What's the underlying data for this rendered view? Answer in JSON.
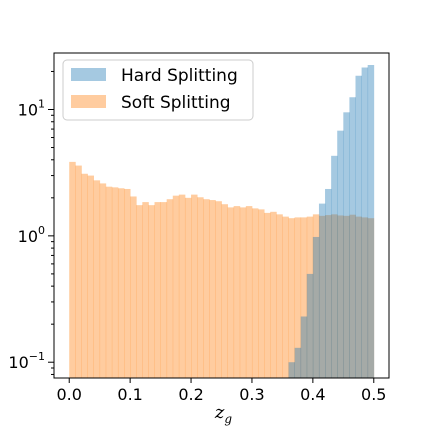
{
  "chart_data": {
    "type": "histogram",
    "title": "",
    "xlabel_main": "z",
    "xlabel_sub": "g",
    "ylabel": "",
    "yscale": "log",
    "xlim": [
      -0.025,
      0.525
    ],
    "ylim": [
      0.075,
      28
    ],
    "x_ticks": [
      0.0,
      0.1,
      0.2,
      0.3,
      0.4,
      0.5
    ],
    "x_tick_labels": [
      "0.0",
      "0.1",
      "0.2",
      "0.3",
      "0.4",
      "0.5"
    ],
    "y_ticks": [
      {
        "value": 0.1,
        "base": "10",
        "exp": "−1"
      },
      {
        "value": 1,
        "base": "10",
        "exp": "0"
      },
      {
        "value": 10,
        "base": "10",
        "exp": "1"
      }
    ],
    "grid": false,
    "legend_position": "upper-left",
    "bin_start": 0.0,
    "bin_width": 0.01,
    "series": [
      {
        "name": "Hard Splitting",
        "color": "#1f77b4",
        "opacity": 0.4,
        "values": [
          0,
          0,
          0,
          0,
          0,
          0,
          0,
          0,
          0,
          0,
          0,
          0,
          0,
          0,
          0,
          0,
          0,
          0,
          0,
          0,
          0,
          0,
          0,
          0,
          0,
          0,
          0,
          0,
          0,
          0,
          0,
          0,
          0,
          0,
          0,
          0,
          0.1,
          0.13,
          0.23,
          0.5,
          0.98,
          1.8,
          2.35,
          4.3,
          6.8,
          9.5,
          12.5,
          18.5,
          21.5,
          22.5
        ]
      },
      {
        "name": "Soft Splitting",
        "color": "#ff7f0e",
        "opacity": 0.4,
        "values": [
          3.85,
          3.6,
          3.1,
          3.0,
          2.75,
          2.6,
          2.45,
          2.42,
          2.38,
          2.35,
          2.05,
          1.75,
          1.85,
          1.75,
          1.85,
          1.85,
          1.95,
          2.08,
          2.12,
          2.0,
          2.12,
          2.02,
          1.95,
          1.92,
          1.88,
          1.78,
          1.68,
          1.72,
          1.68,
          1.72,
          1.65,
          1.62,
          1.52,
          1.55,
          1.48,
          1.42,
          1.38,
          1.4,
          1.4,
          1.42,
          1.48,
          1.44,
          1.46,
          1.48,
          1.45,
          1.44,
          1.47,
          1.42,
          1.4,
          1.38
        ]
      }
    ]
  }
}
